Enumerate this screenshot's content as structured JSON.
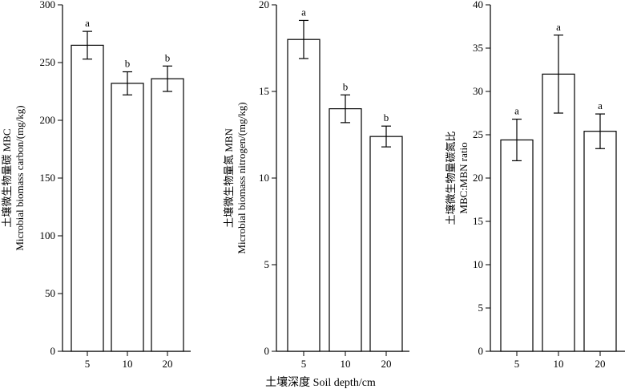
{
  "x_axis_label": "土壤深度 Soil depth/cm",
  "chart_data": [
    {
      "type": "bar",
      "categories": [
        "5",
        "10",
        "20"
      ],
      "values": [
        265,
        232,
        236
      ],
      "errors": [
        12,
        10,
        11
      ],
      "significance": [
        "a",
        "b",
        "b"
      ],
      "ylabel_cn": "土壤微生物量碳 MBC",
      "ylabel_en": "Microbial biomass carbon/(mg/kg)",
      "ylim": [
        0,
        300
      ],
      "yticks": [
        0,
        50,
        100,
        150,
        200,
        250,
        300
      ]
    },
    {
      "type": "bar",
      "categories": [
        "5",
        "10",
        "20"
      ],
      "values": [
        18.0,
        14.0,
        12.4
      ],
      "errors": [
        1.1,
        0.8,
        0.6
      ],
      "significance": [
        "a",
        "b",
        "b"
      ],
      "ylabel_cn": "土壤微生物量氮 MBN",
      "ylabel_en": "Microbial biomass nitrogen/(mg/kg)",
      "ylim": [
        0,
        20
      ],
      "yticks": [
        0,
        5,
        10,
        15,
        20
      ]
    },
    {
      "type": "bar",
      "categories": [
        "5",
        "10",
        "20"
      ],
      "values": [
        24.4,
        32.0,
        25.4
      ],
      "errors": [
        2.4,
        4.5,
        2.0
      ],
      "significance": [
        "a",
        "a",
        "a"
      ],
      "ylabel_cn": "土壤微生物量碳氮比",
      "ylabel_en": "MBC:MBN ratio",
      "ylim": [
        0,
        40
      ],
      "yticks": [
        0,
        5,
        10,
        15,
        20,
        25,
        30,
        35,
        40
      ]
    }
  ]
}
